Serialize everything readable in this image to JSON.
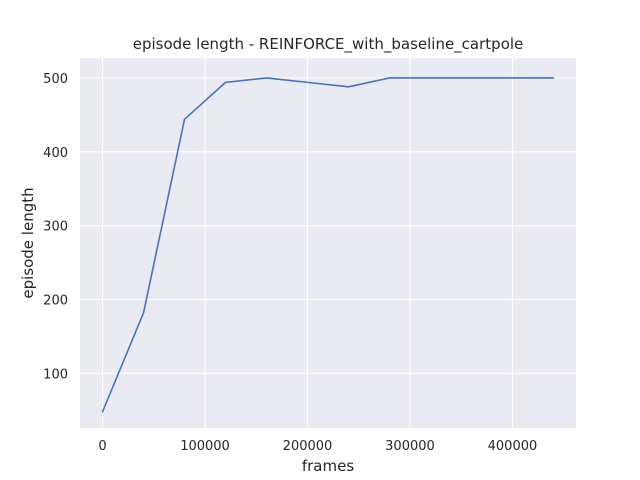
{
  "chart_data": {
    "type": "line",
    "title": "episode length - REINFORCE_with_baseline_cartpole",
    "xlabel": "frames",
    "ylabel": "episode length",
    "xlim": [
      -22000,
      462000
    ],
    "ylim": [
      26,
      527
    ],
    "xticks": [
      0,
      100000,
      200000,
      300000,
      400000
    ],
    "xtick_labels": [
      "0",
      "100000",
      "200000",
      "300000",
      "400000"
    ],
    "yticks": [
      100,
      200,
      300,
      400,
      500
    ],
    "ytick_labels": [
      "100",
      "200",
      "300",
      "400",
      "500"
    ],
    "grid": true,
    "background_color": "#eaeaf2",
    "grid_color": "#ffffff",
    "series": [
      {
        "color": "#4c72b0",
        "x": [
          0,
          40000,
          80000,
          120000,
          160000,
          200000,
          240000,
          280000,
          320000,
          360000,
          400000,
          440000
        ],
        "y": [
          48,
          182,
          444,
          494,
          500,
          494,
          488,
          500,
          500,
          500,
          500,
          500
        ]
      }
    ]
  }
}
